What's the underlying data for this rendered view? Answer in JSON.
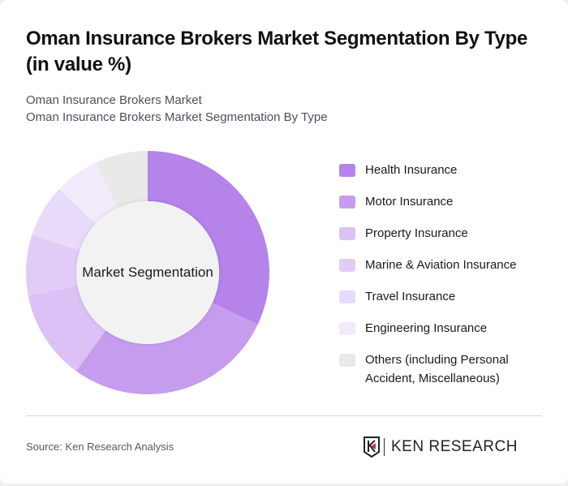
{
  "header": {
    "title": "Oman Insurance Brokers Market Segmentation By Type (in value %)",
    "subtitle_line1": "Oman Insurance Brokers Market",
    "subtitle_line2": "Oman Insurance Brokers Market Segmentation By Type"
  },
  "chart": {
    "center_label": "Market Segmentation"
  },
  "legend": [
    {
      "label": "Health Insurance",
      "color": "#b583ea"
    },
    {
      "label": "Motor Insurance",
      "color": "#c69dee"
    },
    {
      "label": "Property Insurance",
      "color": "#dbc1f5"
    },
    {
      "label": "Marine & Aviation Insurance",
      "color": "#e1ccf7"
    },
    {
      "label": "Travel Insurance",
      "color": "#e8daf9"
    },
    {
      "label": "Engineering Insurance",
      "color": "#f2ebfc"
    },
    {
      "label": "Others (including Personal Accident, Miscellaneous)",
      "color": "#e9e9e9"
    }
  ],
  "footer": {
    "source": "Source: Ken Research Analysis",
    "logo_text": "KEN RESEARCH"
  },
  "chart_data": {
    "type": "pie",
    "subtype": "donut",
    "title": "Oman Insurance Brokers Market Segmentation By Type (in value %)",
    "center_label": "Market Segmentation",
    "categories": [
      "Health Insurance",
      "Motor Insurance",
      "Property Insurance",
      "Marine & Aviation Insurance",
      "Travel Insurance",
      "Engineering Insurance",
      "Others (including Personal Accident, Miscellaneous)"
    ],
    "values": [
      32,
      28,
      12,
      8,
      7,
      6,
      7
    ],
    "colors": [
      "#b583ea",
      "#c69dee",
      "#dbc1f5",
      "#e1ccf7",
      "#e8daf9",
      "#f2ebfc",
      "#e9e9e9"
    ],
    "unit": "%",
    "legend_position": "right",
    "start_angle": "top, clockwise"
  }
}
